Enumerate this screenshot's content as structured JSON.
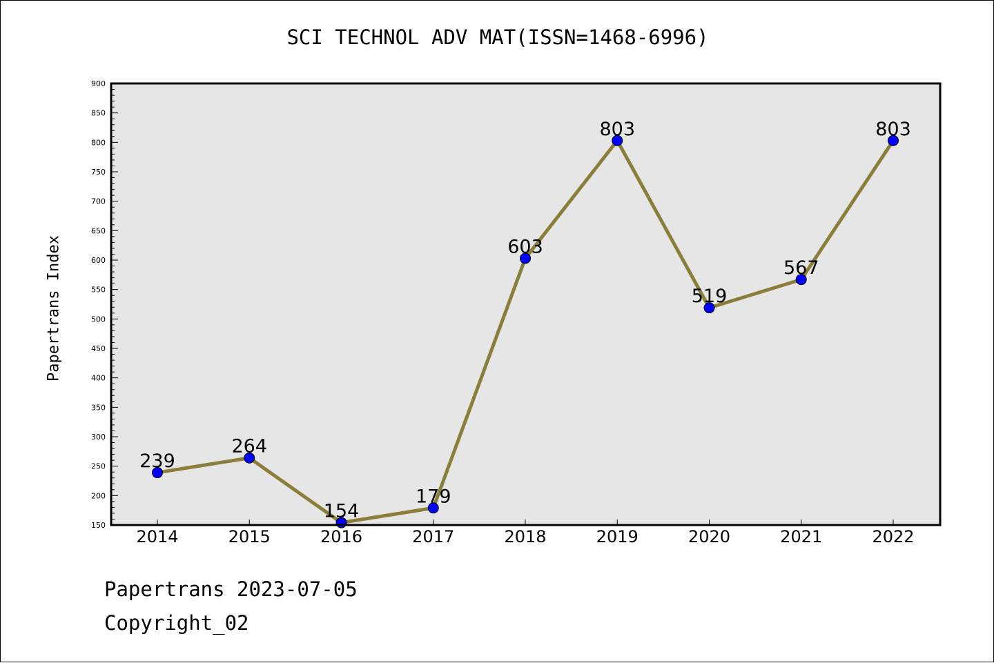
{
  "chart_data": {
    "type": "line",
    "title": "SCI TECHNOL ADV MAT(ISSN=1468-6996)",
    "xlabel": "",
    "ylabel": "Papertrans Index",
    "categories": [
      "2014",
      "2015",
      "2016",
      "2017",
      "2018",
      "2019",
      "2020",
      "2021",
      "2022"
    ],
    "series": [
      {
        "values": [
          239,
          264,
          154,
          179,
          603,
          803,
          519,
          567,
          803
        ]
      }
    ],
    "data_labels": [
      "239",
      "264",
      "154",
      "179",
      "603",
      "803",
      "519",
      "567",
      "803"
    ],
    "ylim": [
      150,
      900
    ],
    "y_ticks": [
      "150",
      "200",
      "250",
      "300",
      "350",
      "400",
      "450",
      "500",
      "550",
      "600",
      "650",
      "700",
      "750",
      "800",
      "850",
      "900"
    ],
    "grid": false,
    "legend": "none",
    "colors": {
      "line": "#8b7d3a",
      "marker": "#0000ff",
      "plot_background": "#e6e6e6"
    }
  },
  "footer": {
    "line1": "Papertrans 2023-07-05",
    "line2": "Copyright_02"
  }
}
